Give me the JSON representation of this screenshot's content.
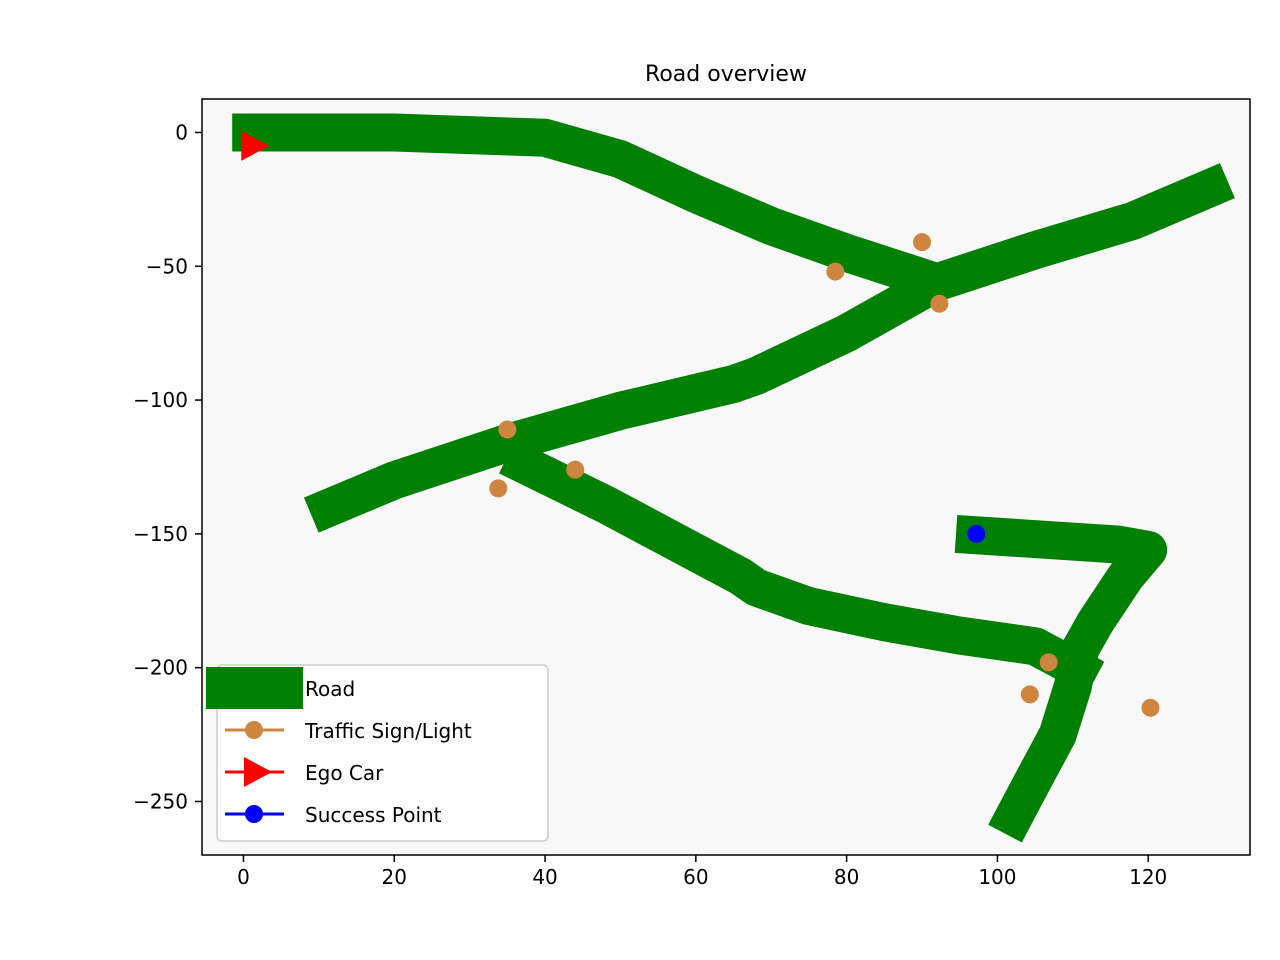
{
  "chart_data": {
    "type": "scatter",
    "title": "Road overview",
    "xlabel": "",
    "ylabel": "",
    "xlim": [
      -5.5,
      133.5
    ],
    "ylim": [
      -270,
      12.5
    ],
    "xticks": [
      0,
      20,
      40,
      60,
      80,
      100,
      120
    ],
    "yticks": [
      0,
      -50,
      -100,
      -150,
      -200,
      -250
    ],
    "xtick_labels": [
      "0",
      "20",
      "40",
      "60",
      "80",
      "100",
      "120"
    ],
    "ytick_labels": [
      "0",
      "−50",
      "−100",
      "−150",
      "−200",
      "−250"
    ],
    "grid": false,
    "legend_position": "lower-left",
    "colors": {
      "road": "#008000",
      "traffic": "#cd853f",
      "ego": "#ff0000",
      "success": "#0000ff",
      "plot_background": "#f8f8f8"
    },
    "legend": [
      {
        "label": "Road",
        "style": "road"
      },
      {
        "label": "Traffic Sign/Light",
        "style": "traffic"
      },
      {
        "label": "Ego Car",
        "style": "ego"
      },
      {
        "label": "Success Point",
        "style": "success"
      }
    ],
    "roads": [
      {
        "name": "Road",
        "points": [
          [
            -1.5,
            0
          ],
          [
            20,
            0
          ],
          [
            40,
            -2
          ],
          [
            50,
            -10
          ],
          [
            60,
            -23
          ],
          [
            70,
            -35
          ],
          [
            80,
            -45
          ],
          [
            92,
            -56
          ]
        ]
      },
      {
        "name": "Road",
        "points": [
          [
            9,
            -143
          ],
          [
            20,
            -130
          ],
          [
            35,
            -116
          ],
          [
            50,
            -104
          ],
          [
            65,
            -94
          ],
          [
            68,
            -91
          ],
          [
            80,
            -75
          ],
          [
            92,
            -56
          ],
          [
            105,
            -44
          ],
          [
            118,
            -33
          ],
          [
            130.5,
            -18
          ]
        ]
      },
      {
        "name": "Road",
        "points": [
          [
            35,
            -121
          ],
          [
            48,
            -139
          ],
          [
            60,
            -157
          ],
          [
            66,
            -166
          ],
          [
            68,
            -170
          ],
          [
            75,
            -177
          ],
          [
            85,
            -183
          ],
          [
            95,
            -188
          ],
          [
            105,
            -192
          ],
          [
            113,
            -204
          ]
        ]
      },
      {
        "name": "Road",
        "points": [
          [
            94.5,
            -150
          ],
          [
            116,
            -154
          ],
          [
            120,
            -156
          ],
          [
            117,
            -166
          ],
          [
            113,
            -183
          ],
          [
            111,
            -193
          ],
          [
            110,
            -207
          ],
          [
            108,
            -225
          ],
          [
            104,
            -246
          ],
          [
            101,
            -262
          ]
        ]
      }
    ],
    "traffic_signs": {
      "x": [
        90.0,
        78.5,
        92.3,
        35.0,
        44.0,
        33.8,
        106.8,
        104.3,
        120.3
      ],
      "y": [
        -41,
        -52,
        -64,
        -111,
        -126,
        -133,
        -198,
        -210,
        -215
      ]
    },
    "ego_car": {
      "x": 1.3,
      "y": -5
    },
    "success_point": {
      "x": 97.2,
      "y": -150
    }
  }
}
